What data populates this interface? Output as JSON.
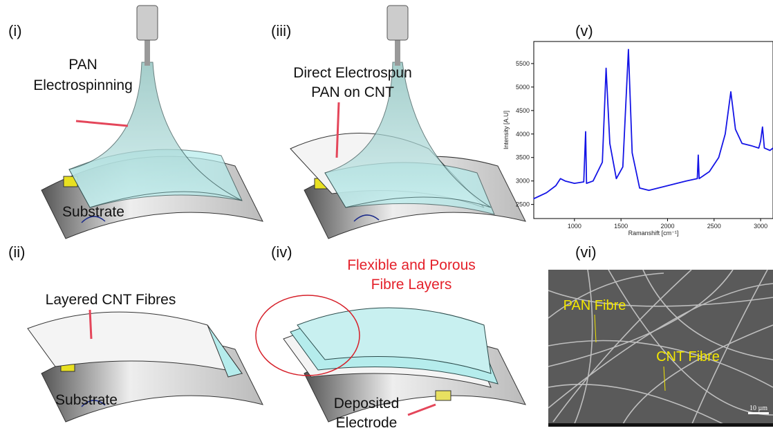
{
  "panels": [
    {
      "label": "(i)",
      "callouts": [
        "PAN",
        "Electrospinning",
        "Substrate"
      ]
    },
    {
      "label": "(iii)",
      "callouts": [
        "Direct Electrospun",
        "PAN on CNT"
      ]
    },
    {
      "label": "(v)"
    },
    {
      "label": "(ii)",
      "callouts": [
        "Layered CNT Fibres",
        "Substrate"
      ]
    },
    {
      "label": "(iv)",
      "callouts": [
        "Flexible and Porous",
        "Fibre Layers",
        "Deposited",
        "Electrode"
      ]
    },
    {
      "label": "(vi)",
      "callouts": [
        "PAN Fibre",
        "CNT Fibre",
        "10 µm"
      ]
    }
  ],
  "chart_data": {
    "type": "line",
    "ylabel": "Intensity [A.U]",
    "xlabel": "Ramanshift [cm⁻¹]",
    "x": [
      560,
      700,
      800,
      850,
      900,
      1000,
      1100,
      1120,
      1130,
      1200,
      1300,
      1340,
      1380,
      1450,
      1520,
      1580,
      1620,
      1700,
      1800,
      1900,
      2000,
      2100,
      2200,
      2320,
      2330,
      2340,
      2450,
      2550,
      2620,
      2680,
      2730,
      2800,
      2900,
      2980,
      3000,
      3020,
      3040,
      3100,
      3133
    ],
    "series": [
      {
        "color": "#1414e6",
        "values": [
          2620,
          2750,
          2900,
          3050,
          3000,
          2950,
          2980,
          4050,
          2950,
          3000,
          3400,
          5400,
          3800,
          3050,
          3300,
          5800,
          3600,
          2850,
          2800,
          2850,
          2900,
          2950,
          3000,
          3050,
          3550,
          3050,
          3200,
          3500,
          4000,
          4900,
          4100,
          3800,
          3750,
          3700,
          3850,
          4150,
          3700,
          3650,
          3700
        ]
      }
    ],
    "xlim": [
      563,
      3133
    ],
    "ylim": [
      2200,
      5970
    ],
    "xticks": [
      1000,
      1500,
      2000,
      2500,
      3000
    ],
    "yticks": [
      2500,
      3000,
      3500,
      4000,
      4500,
      5000,
      5500
    ]
  }
}
